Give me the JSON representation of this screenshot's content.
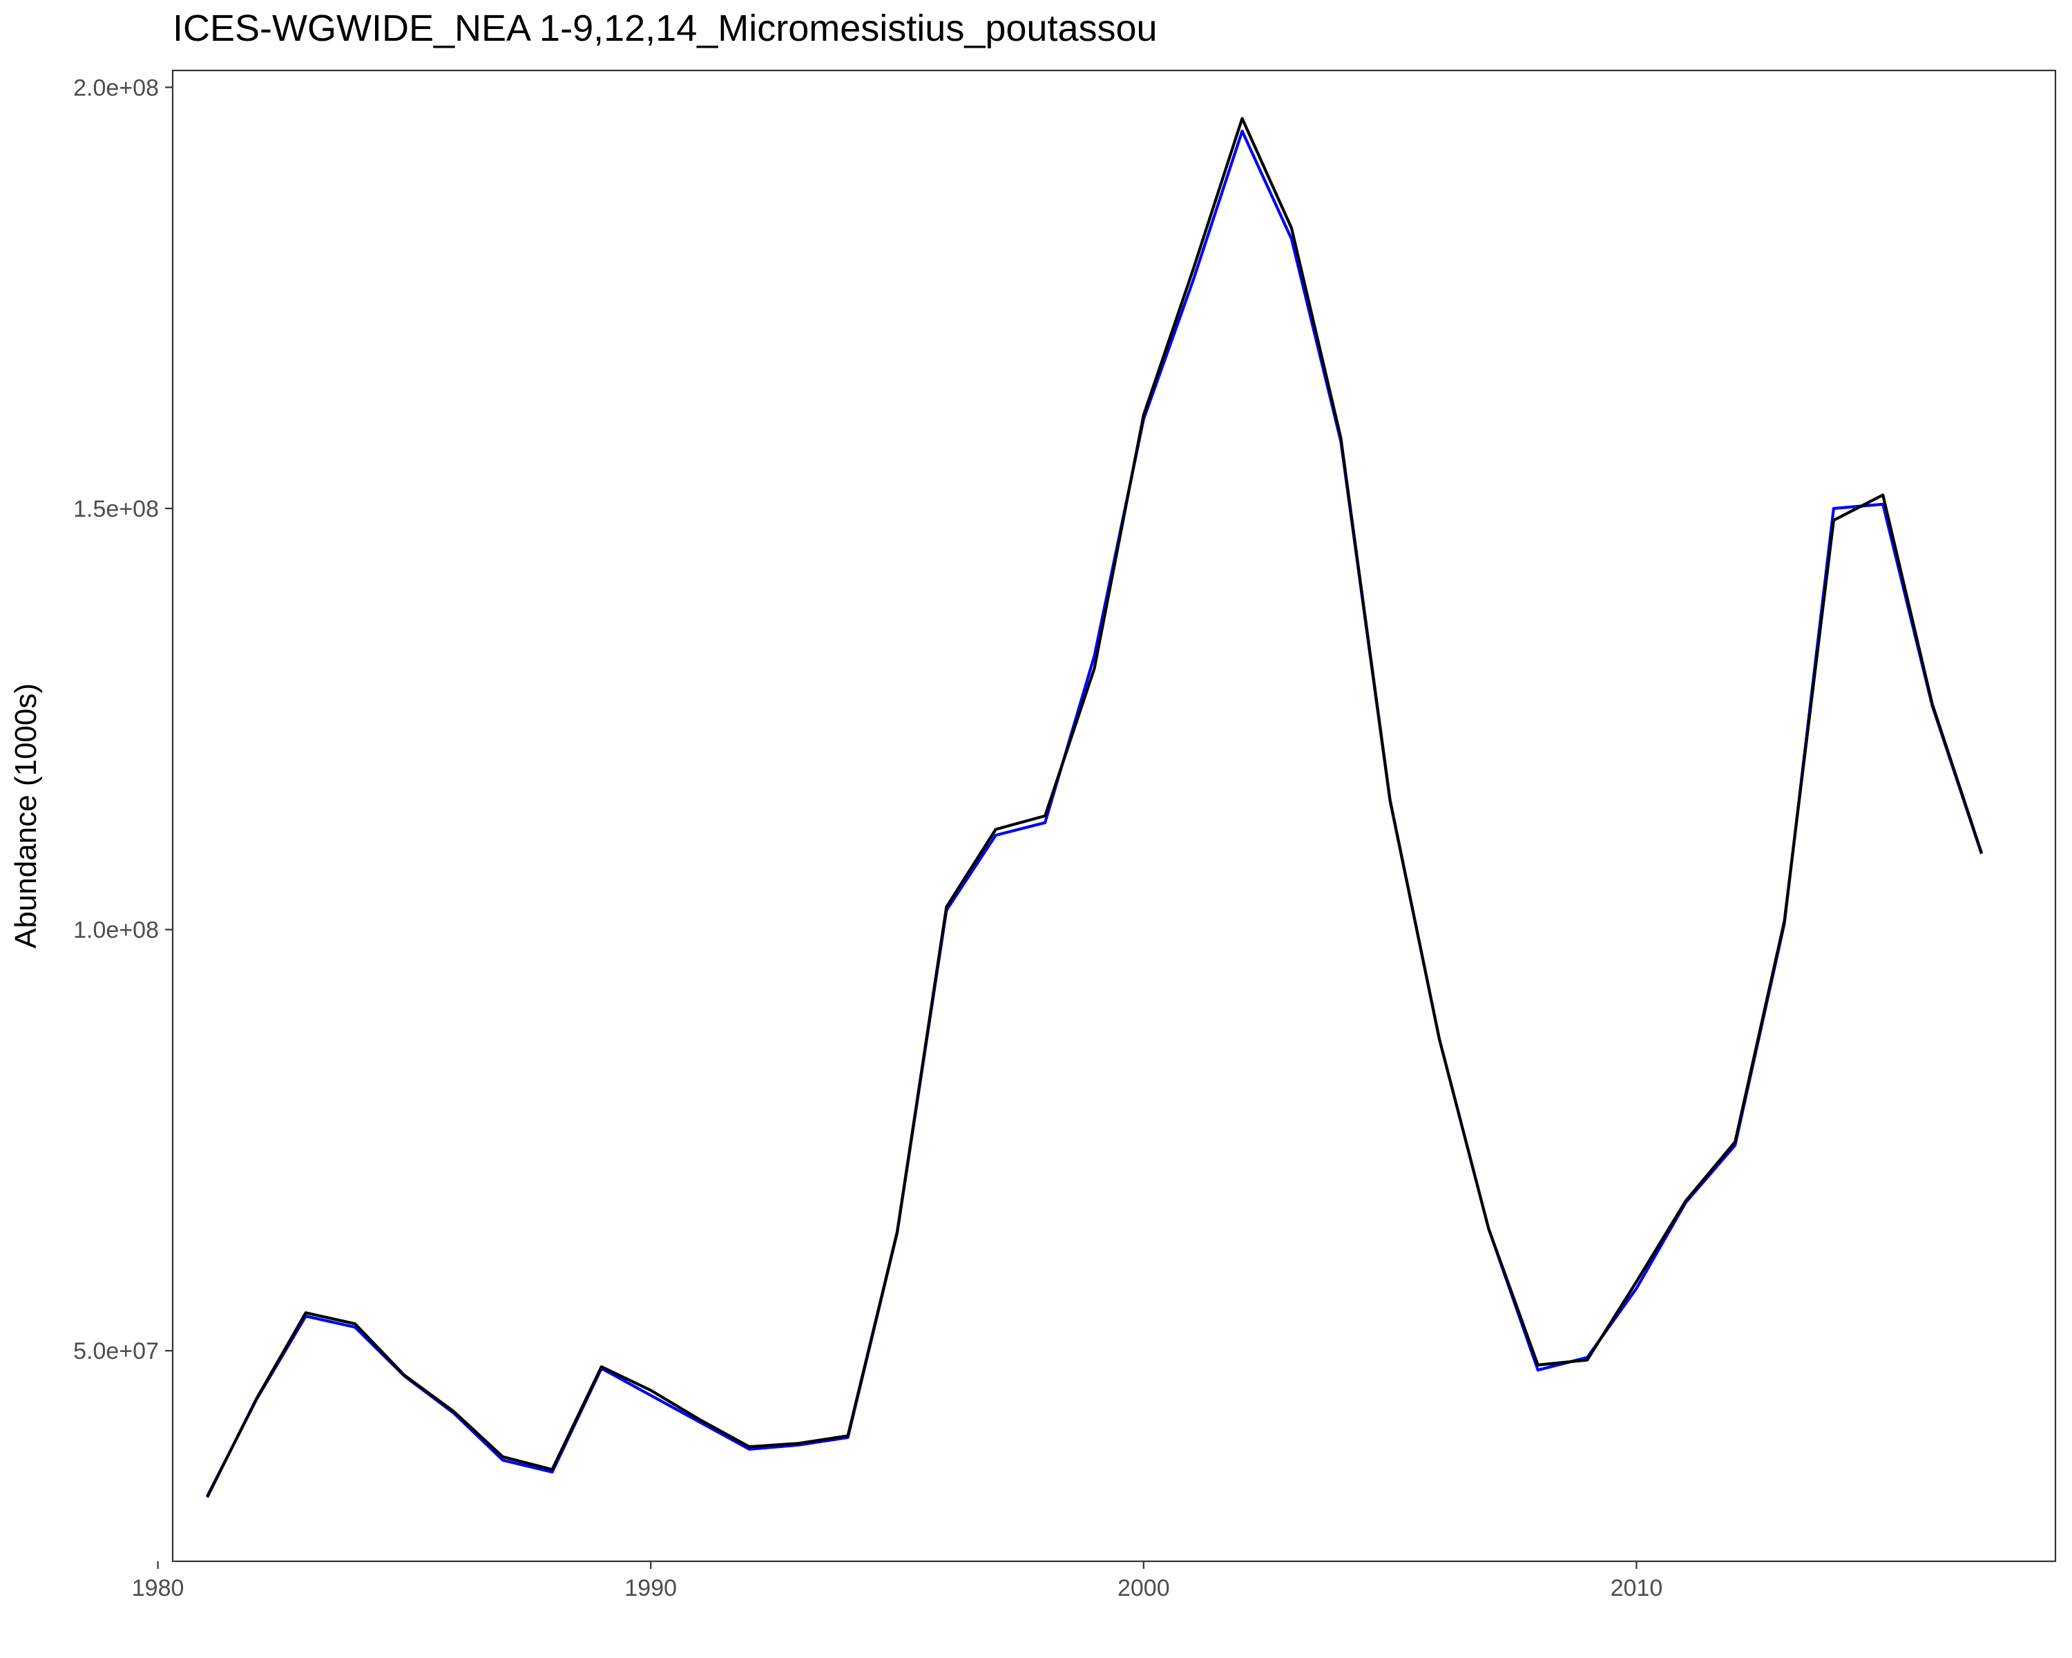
{
  "chart_data": {
    "type": "line",
    "title": "ICES-WGWIDE_NEA 1-9,12,14_Micromesistius_poutassou",
    "xlabel": "",
    "ylabel": "Abundance (1000s)",
    "xlim": [
      1980.3,
      2018.5
    ],
    "ylim": [
      25000000,
      202000000
    ],
    "x_ticks": [
      1980,
      1990,
      2000,
      2010
    ],
    "y_ticks": [
      50000000,
      100000000,
      150000000,
      200000000
    ],
    "y_tick_labels": [
      "5.0e+07",
      "1.0e+08",
      "1.5e+08",
      "2.0e+08"
    ],
    "grid": false,
    "legend": "none",
    "x": [
      1981,
      1982,
      1983,
      1984,
      1985,
      1986,
      1987,
      1988,
      1989,
      1990,
      1991,
      1992,
      1993,
      1994,
      1995,
      1996,
      1997,
      1998,
      1999,
      2000,
      2001,
      2002,
      2003,
      2004,
      2005,
      2006,
      2007,
      2008,
      2009,
      2010,
      2011,
      2012,
      2013,
      2014,
      2015,
      2016,
      2017
    ],
    "series": [
      {
        "color": "#0000ff",
        "values": [
          32700000,
          44200000,
          54100000,
          52800000,
          47000000,
          42600000,
          37000000,
          35600000,
          47900000,
          44700000,
          41500000,
          38300000,
          38800000,
          39700000,
          64000000,
          102300000,
          111200000,
          112700000,
          132500000,
          160600000,
          177000000,
          194800000,
          182000000,
          158000000,
          115300000,
          87000000,
          64500000,
          47700000,
          49200000,
          57400000,
          67600000,
          74400000,
          100700000,
          150000000,
          150500000,
          126600000,
          109000000
        ]
      },
      {
        "color": "#000000",
        "values": [
          32600000,
          44300000,
          54500000,
          53200000,
          47100000,
          42800000,
          37400000,
          35900000,
          48100000,
          45300000,
          41800000,
          38600000,
          39000000,
          39900000,
          64100000,
          102700000,
          111900000,
          113500000,
          131000000,
          161100000,
          178300000,
          196300000,
          183300000,
          158400000,
          115400000,
          87000000,
          64500000,
          48300000,
          48900000,
          58200000,
          67800000,
          74800000,
          101000000,
          148600000,
          151600000,
          126800000,
          109100000
        ]
      }
    ]
  }
}
